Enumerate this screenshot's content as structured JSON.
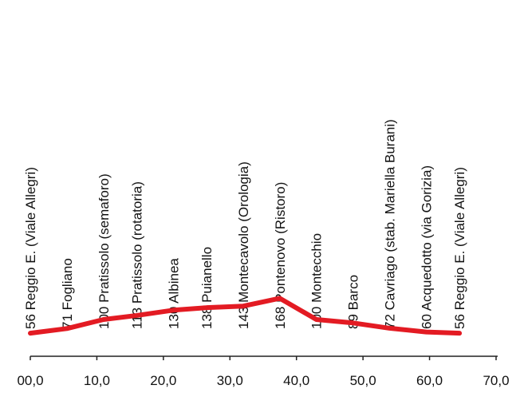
{
  "chart_data": {
    "type": "line",
    "title": "",
    "xlabel": "",
    "ylabel": "",
    "xlim": [
      0,
      70
    ],
    "ylim": [
      0,
      900
    ],
    "grid": false,
    "legend": "none",
    "series_color": "#e31b23",
    "axis_color": "#222222",
    "x_ticks": [
      "00,0",
      "10,0",
      "20,0",
      "30,0",
      "40,0",
      "50,0",
      "60,0",
      "70,0"
    ],
    "x_tick_values": [
      0,
      10,
      20,
      30,
      40,
      50,
      60,
      70
    ],
    "points": [
      {
        "x": 0.0,
        "y": 56,
        "label": "56 Reggio E. (Viale Allegri)"
      },
      {
        "x": 5.5,
        "y": 71,
        "label": "71 Fogliano"
      },
      {
        "x": 11.0,
        "y": 100,
        "label": "100 Pratissolo (semaforo)"
      },
      {
        "x": 16.0,
        "y": 113,
        "label": "113 Pratissolo (rotatoria)"
      },
      {
        "x": 21.5,
        "y": 130,
        "label": "130 Albinea"
      },
      {
        "x": 26.5,
        "y": 138,
        "label": "138 Puianello"
      },
      {
        "x": 32.0,
        "y": 143,
        "label": "143 Montecavolo (Orologia)"
      },
      {
        "x": 37.5,
        "y": 168,
        "label": "168 Pontenovo (Ristoro)"
      },
      {
        "x": 43.0,
        "y": 100,
        "label": "100 Montecchio"
      },
      {
        "x": 48.5,
        "y": 89,
        "label": "89 Barco"
      },
      {
        "x": 54.0,
        "y": 72,
        "label": "72 Cavriago (stab. Mariella Burani)"
      },
      {
        "x": 59.5,
        "y": 60,
        "label": "60 Acquedotto (via Gorizia)"
      },
      {
        "x": 64.5,
        "y": 56,
        "label": "56 Reggio E. (Viale Allegri)"
      }
    ]
  }
}
